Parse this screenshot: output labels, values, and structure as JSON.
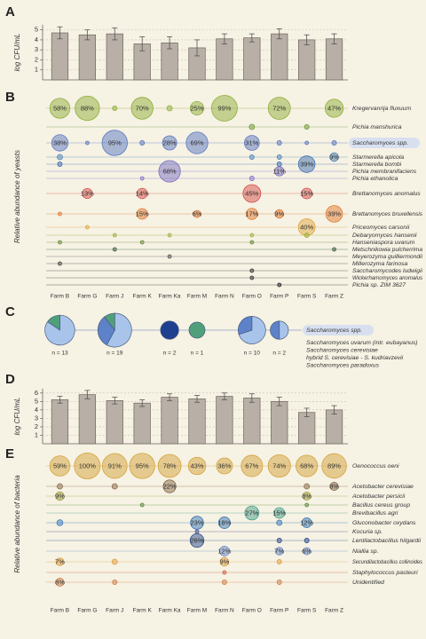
{
  "chart_data": [
    {
      "type": "bar",
      "panel": "A",
      "y_label": "log CFU/mL",
      "color": "#b8afa6",
      "values": [
        4.7,
        4.5,
        4.6,
        3.6,
        3.7,
        3.2,
        4.1,
        4.2,
        4.6,
        4.0,
        4.1
      ],
      "errors": [
        0.6,
        0.5,
        0.6,
        0.7,
        0.6,
        0.8,
        0.5,
        0.4,
        0.5,
        0.5,
        0.5
      ],
      "ylim": [
        0,
        5.5
      ],
      "yticks": [
        1,
        2,
        3,
        4,
        5
      ],
      "grid": true
    },
    {
      "type": "bubble",
      "panel": "B",
      "y_label": "Relative abundance of yeasts",
      "categories": [
        "Farm B",
        "Farm G",
        "Farm J",
        "Farm K",
        "Farm Ka",
        "Farm M",
        "Farm N",
        "Farm O",
        "Farm P",
        "Farm S",
        "Farm Z"
      ],
      "series": [
        {
          "name": "Kregervanrija fluxuum",
          "color": "#8fae3a",
          "values": [
            58,
            88,
            2,
            70,
            3,
            25,
            99,
            null,
            72,
            null,
            47
          ],
          "value_labels": [
            "58%",
            "88%",
            null,
            "70%",
            null,
            "25%",
            "99%",
            null,
            "72%",
            null,
            "47%"
          ]
        },
        {
          "name": "Pichia manshurica",
          "color": "#6f9a3a",
          "values": [
            null,
            null,
            null,
            null,
            null,
            null,
            null,
            3,
            null,
            2,
            null
          ]
        },
        {
          "name": "Saccharomyces spp.",
          "color": "#5a78c0",
          "highlight": true,
          "values": [
            38,
            1,
            95,
            2,
            28,
            69,
            null,
            31,
            2,
            1,
            2
          ],
          "value_labels": [
            "38%",
            null,
            "95%",
            null,
            "28%",
            "69%",
            null,
            "31%",
            null,
            null,
            null
          ]
        },
        {
          "name": "Starmerella apicola",
          "color": "#4f86b8",
          "values": [
            3,
            null,
            null,
            null,
            null,
            null,
            null,
            2,
            2,
            null,
            9
          ],
          "value_labels": [
            null,
            null,
            null,
            null,
            null,
            null,
            null,
            null,
            null,
            null,
            "9%"
          ]
        },
        {
          "name": "Starmerella bombi",
          "color": "#3f6fb0",
          "values": [
            2,
            null,
            null,
            null,
            null,
            null,
            null,
            null,
            2,
            39,
            null
          ],
          "value_labels": [
            null,
            null,
            null,
            null,
            null,
            null,
            null,
            null,
            null,
            "39%",
            null
          ]
        },
        {
          "name": "Pichia membranifaciens",
          "color": "#7a6fc0",
          "values": [
            null,
            null,
            null,
            null,
            68,
            null,
            null,
            null,
            11,
            null,
            null
          ],
          "value_labels": [
            null,
            null,
            null,
            null,
            "68%",
            null,
            null,
            null,
            "11%",
            null,
            null
          ]
        },
        {
          "name": "Pichia ethanolica",
          "color": "#8a70c8",
          "values": [
            null,
            null,
            null,
            1,
            null,
            null,
            null,
            2,
            null,
            null,
            null
          ]
        },
        {
          "name": "Brettanomyces anomalus",
          "color": "#d4504a",
          "values": [
            null,
            13,
            null,
            14,
            null,
            null,
            null,
            45,
            null,
            15,
            null
          ],
          "value_labels": [
            null,
            "13%",
            null,
            "14%",
            null,
            null,
            null,
            "45%",
            null,
            "15%",
            null
          ]
        },
        {
          "name": "Brettanomyces bruxellensis",
          "color": "#e07a30",
          "values": [
            1,
            null,
            null,
            15,
            null,
            6,
            null,
            17,
            9,
            null,
            39
          ],
          "value_labels": [
            null,
            null,
            null,
            "15%",
            null,
            "6%",
            null,
            "17%",
            "9%",
            null,
            "39%"
          ]
        },
        {
          "name": "Priceomyces carsonii",
          "color": "#e0a640",
          "values": [
            null,
            1,
            null,
            null,
            null,
            null,
            null,
            null,
            null,
            40,
            null
          ],
          "value_labels": [
            null,
            null,
            null,
            null,
            null,
            null,
            null,
            null,
            null,
            "40%",
            null
          ]
        },
        {
          "name": "Debaryomyces hansenii",
          "color": "#a0b040",
          "values": [
            null,
            null,
            1,
            null,
            1,
            null,
            null,
            1,
            null,
            2,
            null
          ]
        },
        {
          "name": "Hanseniaspora uvarum",
          "color": "#6a8a3a",
          "values": [
            1,
            null,
            null,
            1,
            null,
            null,
            null,
            1,
            null,
            null,
            null
          ]
        },
        {
          "name": "Metschnikowia pulcherrima",
          "color": "#3a5a3a",
          "values": [
            null,
            null,
            1,
            null,
            null,
            null,
            null,
            null,
            null,
            null,
            1
          ]
        },
        {
          "name": "Meyerozyma guilliermondii",
          "color": "#555555",
          "values": [
            null,
            null,
            null,
            null,
            1,
            null,
            null,
            null,
            null,
            null,
            null
          ]
        },
        {
          "name": "Millerozyma farinosa",
          "color": "#444444",
          "values": [
            1,
            null,
            null,
            null,
            null,
            null,
            null,
            null,
            null,
            null,
            null
          ]
        },
        {
          "name": "Saccharomycodes ludwigii",
          "color": "#333333",
          "values": [
            null,
            null,
            null,
            null,
            null,
            null,
            null,
            1,
            null,
            null,
            null
          ]
        },
        {
          "name": "Wickerhamomyces anomalus",
          "color": "#333333",
          "values": [
            null,
            null,
            null,
            null,
            null,
            null,
            null,
            1,
            null,
            null,
            null
          ]
        },
        {
          "name": "Pichia sp. ZIM 3627",
          "color": "#222222",
          "values": [
            null,
            null,
            null,
            null,
            null,
            null,
            null,
            null,
            1,
            null,
            null
          ]
        }
      ]
    },
    {
      "type": "pie",
      "panel": "C",
      "legend_title": "Saccharomyces spp.",
      "n_labels": [
        "n = 13",
        "n = 19",
        "n = 2",
        "n = 1",
        "n = 10",
        "n = 2"
      ],
      "series": [
        {
          "name": "Saccharomyces uvarum (intr. eubayanus)",
          "color": "#a8c4ea",
          "values": [
            11,
            11,
            null,
            null,
            7,
            1
          ]
        },
        {
          "name": "Saccharomyces cerevisiae",
          "color": "#5d82c8",
          "values": [
            null,
            6,
            null,
            null,
            3,
            1
          ]
        },
        {
          "name": "hybrid S. cerevisiae - S. kudriavzevii",
          "color": "#4fa07a",
          "values": [
            2,
            2,
            null,
            1,
            null,
            null
          ]
        },
        {
          "name": "Saccharomyces paradoxus",
          "color": "#1f3f8f",
          "values": [
            null,
            null,
            2,
            null,
            null,
            null
          ]
        }
      ]
    },
    {
      "type": "bar",
      "panel": "D",
      "y_label": "log CFU/mL",
      "color": "#b8afa6",
      "values": [
        5.2,
        5.8,
        5.1,
        4.8,
        5.5,
        5.3,
        5.6,
        5.4,
        5.0,
        3.7,
        4.0
      ],
      "errors": [
        0.4,
        0.5,
        0.4,
        0.4,
        0.4,
        0.4,
        0.4,
        0.5,
        0.5,
        0.5,
        0.5
      ],
      "ylim": [
        0,
        6.5
      ],
      "yticks": [
        1,
        2,
        3,
        4,
        5,
        6
      ],
      "grid": true
    },
    {
      "type": "bubble",
      "panel": "E",
      "y_label": "Relative abundance of bacteria",
      "categories": [
        "Farm B",
        "Farm G",
        "Farm J",
        "Farm K",
        "Farm Ka",
        "Farm M",
        "Farm N",
        "Farm O",
        "Farm P",
        "Farm S",
        "Farm Z"
      ],
      "series": [
        {
          "name": "Oenococcus oeni",
          "color": "#d4a23a",
          "values": [
            59,
            100,
            91,
            95,
            78,
            43,
            36,
            67,
            74,
            68,
            89
          ],
          "value_labels": [
            "59%",
            "100%",
            "91%",
            "95%",
            "78%",
            "43%",
            "36%",
            "67%",
            "74%",
            "68%",
            "89%"
          ]
        },
        {
          "name": "Acetobacter cerevisiae",
          "color": "#8a6a4a",
          "values": [
            3,
            null,
            3,
            null,
            22,
            null,
            null,
            null,
            null,
            3,
            8
          ],
          "value_labels": [
            null,
            null,
            null,
            null,
            "22%",
            null,
            null,
            null,
            null,
            null,
            "8%"
          ]
        },
        {
          "name": "Acetobacter persicii",
          "color": "#a0a040",
          "values": [
            9,
            null,
            null,
            null,
            null,
            null,
            null,
            null,
            null,
            8,
            null
          ],
          "value_labels": [
            "9%",
            null,
            null,
            null,
            null,
            null,
            null,
            null,
            null,
            "8%",
            null
          ]
        },
        {
          "name": "Bacillus cereus group",
          "color": "#5a8a3a",
          "values": [
            null,
            null,
            null,
            1,
            null,
            null,
            null,
            null,
            null,
            1,
            null
          ]
        },
        {
          "name": "Brevibacillus agri",
          "color": "#4aa08a",
          "values": [
            null,
            null,
            null,
            null,
            null,
            null,
            null,
            27,
            15,
            null,
            null
          ],
          "value_labels": [
            null,
            null,
            null,
            null,
            null,
            null,
            null,
            "27%",
            "15%",
            null,
            null
          ]
        },
        {
          "name": "Gluconobacter oxydans",
          "color": "#3a78b8",
          "values": [
            4,
            null,
            null,
            null,
            null,
            23,
            18,
            null,
            3,
            12,
            null
          ],
          "value_labels": [
            null,
            null,
            null,
            null,
            null,
            "23%",
            "18%",
            null,
            null,
            "12%",
            null
          ]
        },
        {
          "name": "Kocuria sp.",
          "color": "#4a4a8a",
          "values": [
            null,
            null,
            null,
            null,
            null,
            1,
            null,
            null,
            null,
            null,
            null
          ]
        },
        {
          "name": "Lentilactobacillus hilgardii",
          "color": "#2a4a8a",
          "values": [
            null,
            null,
            null,
            null,
            null,
            26,
            null,
            null,
            2,
            2,
            null
          ],
          "value_labels": [
            null,
            null,
            null,
            null,
            null,
            "26%",
            null,
            null,
            null,
            null,
            null
          ]
        },
        {
          "name": "Niallia sp.",
          "color": "#6a8ac8",
          "values": [
            null,
            null,
            null,
            null,
            null,
            null,
            12,
            null,
            7,
            6,
            null
          ],
          "value_labels": [
            null,
            null,
            null,
            null,
            null,
            null,
            "12%",
            null,
            "7%",
            "6%",
            null
          ]
        },
        {
          "name": "Secundilactobacillus collinoides",
          "color": "#e0a040",
          "values": [
            7,
            null,
            3,
            null,
            null,
            null,
            9,
            null,
            2,
            null,
            null
          ],
          "value_labels": [
            "7%",
            null,
            null,
            null,
            null,
            null,
            "9%",
            null,
            null,
            null,
            null
          ]
        },
        {
          "name": "Staphylococcus pasteuri",
          "color": "#d06040",
          "values": [
            null,
            null,
            null,
            null,
            null,
            null,
            1,
            null,
            null,
            null,
            null
          ]
        },
        {
          "name": "Unidentified",
          "color": "#d0804a",
          "values": [
            8,
            null,
            2,
            null,
            null,
            null,
            2,
            null,
            2,
            null,
            null
          ],
          "value_labels": [
            "8%",
            null,
            null,
            null,
            null,
            null,
            null,
            null,
            null,
            null,
            null
          ]
        }
      ]
    }
  ]
}
